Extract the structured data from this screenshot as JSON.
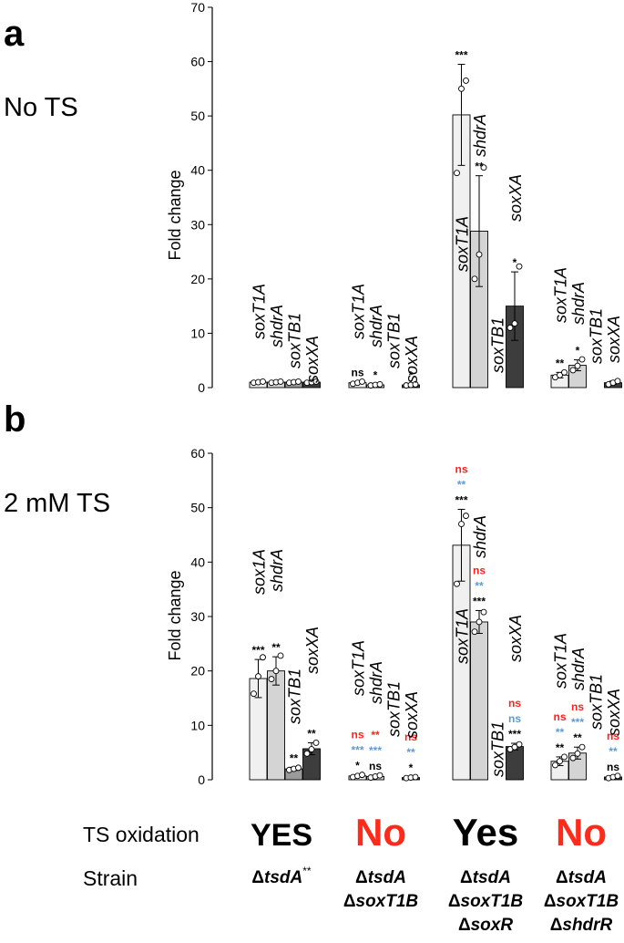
{
  "panels": [
    {
      "letter": "a",
      "condition": "No TS"
    },
    {
      "letter": "b",
      "condition": "2 mM TS"
    }
  ],
  "colors": {
    "sox1": "#f0f0f0",
    "shdrA": "#d4d4d4",
    "soxTB1": "#9a9a9a",
    "soxXA": "#3d3d3d",
    "sig_black": "#000000",
    "sig_red": "#ff2020",
    "sig_blue": "#5b9bd5",
    "yes": "#000000",
    "no": "#ff2a1a"
  },
  "chart_data": [
    {
      "type": "bar",
      "panel": "a",
      "ylabel": "Fold change",
      "ylim": [
        0,
        70
      ],
      "yticks": [
        0,
        10,
        20,
        30,
        40,
        50,
        60,
        70
      ],
      "groups": [
        {
          "bars": [
            {
              "gene": "soxT1A",
              "value": 1.0,
              "err": 0.1,
              "points": [
                0.9,
                1.0,
                1.1
              ],
              "sig": []
            },
            {
              "gene": "shdrA",
              "value": 1.0,
              "err": 0.1,
              "points": [
                0.9,
                1.0,
                1.1
              ],
              "sig": []
            },
            {
              "gene": "soxTB1",
              "value": 1.0,
              "err": 0.1,
              "points": [
                0.9,
                1.0,
                1.1
              ],
              "sig": []
            },
            {
              "gene": "soxXA",
              "value": 1.0,
              "err": 0.1,
              "points": [
                0.9,
                1.0,
                1.1
              ],
              "sig": []
            }
          ]
        },
        {
          "bars": [
            {
              "gene": "soxT1A",
              "value": 0.9,
              "err": 0.2,
              "points": [
                0.7,
                0.9,
                1.1
              ],
              "sig": [
                {
                  "text": "ns",
                  "color": "black"
                }
              ]
            },
            {
              "gene": "shdrA",
              "value": 0.5,
              "err": 0.1,
              "points": [
                0.4,
                0.5,
                0.6
              ],
              "sig": [
                {
                  "text": "*",
                  "color": "black"
                }
              ]
            },
            {
              "gene": "soxTB1",
              "value": 0.0,
              "err": 0.0,
              "points": [],
              "sig": []
            },
            {
              "gene": "soxXA",
              "value": 0.5,
              "err": 0.1,
              "points": [
                0.4,
                0.5,
                0.6
              ],
              "sig": [
                {
                  "text": "*",
                  "color": "black"
                }
              ]
            }
          ]
        },
        {
          "bars": [
            {
              "gene": "soxT1A",
              "value": 50.2,
              "err": 9.3,
              "points": [
                39.5,
                55.0,
                56.5
              ],
              "sig": [
                {
                  "text": "***",
                  "color": "black"
                }
              ]
            },
            {
              "gene": "shdrA",
              "value": 28.8,
              "err": 10.2,
              "points": [
                20.0,
                24.5,
                40.5
              ],
              "sig": [
                {
                  "text": "**",
                  "color": "black"
                }
              ]
            },
            {
              "gene": "soxTB1",
              "value": 0.0,
              "err": 0.0,
              "points": [],
              "sig": []
            },
            {
              "gene": "soxXA",
              "value": 15.0,
              "err": 6.3,
              "points": [
                11.0,
                11.8,
                22.3
              ],
              "sig": [
                {
                  "text": "*",
                  "color": "black"
                }
              ]
            }
          ]
        },
        {
          "bars": [
            {
              "gene": "soxT1A",
              "value": 2.3,
              "err": 0.5,
              "points": [
                1.9,
                2.3,
                2.8
              ],
              "sig": [
                {
                  "text": "**",
                  "color": "black"
                }
              ]
            },
            {
              "gene": "shdrA",
              "value": 4.1,
              "err": 1.0,
              "points": [
                3.2,
                4.0,
                5.2
              ],
              "sig": [
                {
                  "text": "*",
                  "color": "black"
                }
              ]
            },
            {
              "gene": "soxTB1",
              "value": 0.0,
              "err": 0.0,
              "points": [],
              "sig": []
            },
            {
              "gene": "soxXA",
              "value": 0.9,
              "err": 0.3,
              "points": [
                0.6,
                0.9,
                1.2
              ],
              "sig": []
            }
          ]
        }
      ]
    },
    {
      "type": "bar",
      "panel": "b",
      "ylabel": "Fold change",
      "ylim": [
        0,
        60
      ],
      "yticks": [
        0,
        10,
        20,
        30,
        40,
        50,
        60
      ],
      "groups": [
        {
          "bars": [
            {
              "gene": "sox1A",
              "value": 18.6,
              "err": 3.5,
              "points": [
                15.8,
                19.0,
                22.5
              ],
              "sig": [
                {
                  "text": "***",
                  "color": "black"
                }
              ]
            },
            {
              "gene": "shdrA",
              "value": 20.0,
              "err": 2.6,
              "points": [
                18.5,
                20.0,
                22.8
              ],
              "sig": [
                {
                  "text": "**",
                  "color": "black"
                }
              ]
            },
            {
              "gene": "soxTB1",
              "value": 2.0,
              "err": 0.3,
              "points": [
                1.8,
                2.0,
                2.2
              ],
              "sig": [
                {
                  "text": "**",
                  "color": "black"
                }
              ]
            },
            {
              "gene": "soxXA",
              "value": 5.7,
              "err": 1.1,
              "points": [
                4.8,
                5.6,
                6.8
              ],
              "sig": [
                {
                  "text": "**",
                  "color": "black"
                }
              ]
            }
          ]
        },
        {
          "bars": [
            {
              "gene": "soxT1A",
              "value": 0.7,
              "err": 0.2,
              "points": [
                0.5,
                0.7,
                0.9
              ],
              "sig": [
                {
                  "text": "*",
                  "color": "black"
                },
                {
                  "text": "***",
                  "color": "blue"
                },
                {
                  "text": "ns",
                  "color": "red"
                }
              ]
            },
            {
              "gene": "shdrA",
              "value": 0.6,
              "err": 0.2,
              "points": [
                0.4,
                0.6,
                0.8
              ],
              "sig": [
                {
                  "text": "ns",
                  "color": "black"
                },
                {
                  "text": "***",
                  "color": "blue"
                },
                {
                  "text": "**",
                  "color": "red"
                }
              ]
            },
            {
              "gene": "soxTB1",
              "value": 0.0,
              "err": 0.0,
              "points": [],
              "sig": []
            },
            {
              "gene": "soxXA",
              "value": 0.4,
              "err": 0.1,
              "points": [
                0.3,
                0.4,
                0.5
              ],
              "sig": [
                {
                  "text": "*",
                  "color": "black"
                },
                {
                  "text": "**",
                  "color": "blue"
                },
                {
                  "text": "ns",
                  "color": "red"
                }
              ]
            }
          ]
        },
        {
          "bars": [
            {
              "gene": "soxT1A",
              "value": 43.1,
              "err": 6.6,
              "points": [
                36.0,
                47.0,
                48.5
              ],
              "sig": [
                {
                  "text": "***",
                  "color": "black"
                },
                {
                  "text": "**",
                  "color": "blue"
                },
                {
                  "text": "ns",
                  "color": "red"
                }
              ]
            },
            {
              "gene": "shdrA",
              "value": 29.0,
              "err": 2.1,
              "points": [
                27.2,
                29.0,
                30.8
              ],
              "sig": [
                {
                  "text": "***",
                  "color": "black"
                },
                {
                  "text": "**",
                  "color": "blue"
                },
                {
                  "text": "ns",
                  "color": "red"
                }
              ]
            },
            {
              "gene": "soxTB1",
              "value": 0.0,
              "err": 0.0,
              "points": [],
              "sig": []
            },
            {
              "gene": "soxXA",
              "value": 6.1,
              "err": 0.6,
              "points": [
                5.6,
                6.0,
                6.5
              ],
              "sig": [
                {
                  "text": "***",
                  "color": "black"
                },
                {
                  "text": "ns",
                  "color": "blue"
                },
                {
                  "text": "ns",
                  "color": "red"
                }
              ]
            }
          ]
        },
        {
          "bars": [
            {
              "gene": "soxT1A",
              "value": 3.4,
              "err": 0.8,
              "points": [
                2.7,
                3.4,
                4.2
              ],
              "sig": [
                {
                  "text": "**",
                  "color": "black"
                },
                {
                  "text": "**",
                  "color": "blue"
                },
                {
                  "text": "ns",
                  "color": "red"
                }
              ]
            },
            {
              "gene": "shdrA",
              "value": 4.9,
              "err": 1.1,
              "points": [
                4.0,
                4.8,
                6.0
              ],
              "sig": [
                {
                  "text": "**",
                  "color": "black"
                },
                {
                  "text": "***",
                  "color": "blue"
                },
                {
                  "text": "ns",
                  "color": "red"
                }
              ]
            },
            {
              "gene": "soxTB1",
              "value": 0.0,
              "err": 0.0,
              "points": [],
              "sig": []
            },
            {
              "gene": "soxXA",
              "value": 0.5,
              "err": 0.2,
              "points": [
                0.3,
                0.5,
                0.7
              ],
              "sig": [
                {
                  "text": "ns",
                  "color": "black"
                },
                {
                  "text": "**",
                  "color": "blue"
                },
                {
                  "text": "ns",
                  "color": "red"
                }
              ]
            }
          ]
        }
      ]
    }
  ],
  "footer": {
    "ts_label": "TS oxidation",
    "strain_label": "Strain",
    "oxidation": [
      {
        "text": "YES",
        "color": "yes"
      },
      {
        "text": "No",
        "color": "no"
      },
      {
        "text": "Yes",
        "color": "yes"
      },
      {
        "text": "No",
        "color": "no"
      }
    ],
    "strains": [
      {
        "lines": [
          [
            {
              "t": "Δ",
              "i": false
            },
            {
              "t": "tsdA",
              "i": true
            }
          ]
        ],
        "sup": "**"
      },
      {
        "lines": [
          [
            {
              "t": "Δ",
              "i": false
            },
            {
              "t": "tsdA",
              "i": true
            }
          ],
          [
            {
              "t": "Δ",
              "i": false
            },
            {
              "t": "soxT1B",
              "i": true
            }
          ]
        ],
        "sup": ""
      },
      {
        "lines": [
          [
            {
              "t": "Δ",
              "i": false
            },
            {
              "t": "tsdA",
              "i": true
            }
          ],
          [
            {
              "t": "Δ",
              "i": false
            },
            {
              "t": "soxT1B",
              "i": true
            }
          ],
          [
            {
              "t": "Δ",
              "i": false
            },
            {
              "t": "soxR",
              "i": true
            }
          ]
        ],
        "sup": ""
      },
      {
        "lines": [
          [
            {
              "t": "Δ",
              "i": false
            },
            {
              "t": "tsdA",
              "i": true
            }
          ],
          [
            {
              "t": "Δ",
              "i": false
            },
            {
              "t": "soxT1B",
              "i": true
            }
          ],
          [
            {
              "t": "Δ",
              "i": false
            },
            {
              "t": "shdrR",
              "i": true
            }
          ]
        ],
        "sup": ""
      }
    ]
  }
}
